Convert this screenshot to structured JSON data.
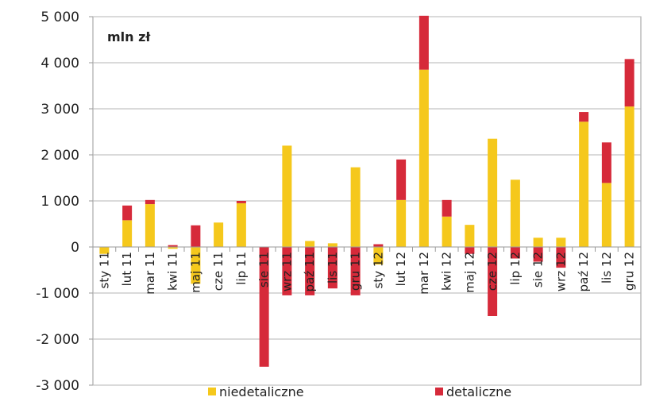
{
  "chart_data": {
    "type": "bar",
    "stacked": true,
    "unit_label": "mln zł",
    "categories": [
      "sty 11",
      "lut 11",
      "mar 11",
      "kwi 11",
      "maj 11",
      "cze 11",
      "lip 11",
      "sie 11",
      "wrz 11",
      "paź 11",
      "lis 11",
      "gru 11",
      "sty 12",
      "lut 12",
      "mar 12",
      "kwi 12",
      "maj 12",
      "cze 12",
      "lip 12",
      "sie 12",
      "wrz 12",
      "paź 12",
      "lis 12",
      "gru 12"
    ],
    "series": [
      {
        "name": "niedetaliczne",
        "color": "#f5c81c",
        "values": [
          -150,
          580,
          930,
          -40,
          -800,
          530,
          950,
          0,
          2200,
          130,
          80,
          1730,
          -380,
          1020,
          3850,
          660,
          480,
          2350,
          1460,
          200,
          200,
          2720,
          1390,
          3050
        ]
      },
      {
        "name": "detaliczne",
        "color": "#d62a3a",
        "values": [
          0,
          320,
          90,
          40,
          470,
          0,
          50,
          -2600,
          -1050,
          -1050,
          -900,
          -1050,
          60,
          880,
          1170,
          360,
          -150,
          -1500,
          -250,
          -320,
          -450,
          210,
          880,
          1030
        ]
      }
    ],
    "y_ticks": [
      "5 000",
      "4 000",
      "3 000",
      "2 000",
      "1 000",
      "0",
      "-1 000",
      "-2 000",
      "-3 000"
    ],
    "ylim": [
      -3000,
      5000
    ],
    "grid": true,
    "legend_position": "bottom"
  }
}
